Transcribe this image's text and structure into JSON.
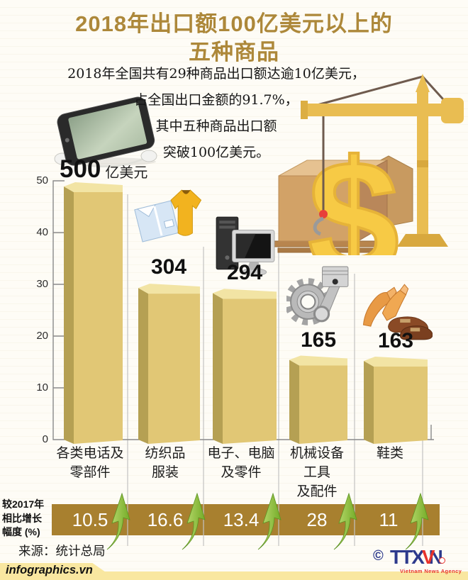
{
  "title": {
    "line1": "2018年出口额100亿美元以上的",
    "line2": "五种商品"
  },
  "intro": {
    "lines": [
      "2018年全国共有29种商品出口额达逾10亿美元，",
      "占全国出口金额的91.7%，",
      "其中五种商品出口额",
      "突破100亿美元。"
    ]
  },
  "chart_data": {
    "type": "bar",
    "title": "2018年出口额100亿美元以上的五种商品",
    "unit_label": "亿美元",
    "categories": [
      "各类电话及零部件",
      "纺织品服装",
      "电子、电脑及零件",
      "机械设备工具及配件",
      "鞋类"
    ],
    "values": [
      500,
      304,
      294,
      165,
      163
    ],
    "value_labels": [
      "500",
      "304",
      "294",
      "165",
      "163"
    ],
    "y_ticks": [
      "0",
      "10",
      "20",
      "30",
      "40",
      "50"
    ],
    "ylim": [
      0,
      500
    ],
    "y_axis_note": "axis ticks 0-50 represent tens of 亿美元",
    "grid": "ticks only, column separators",
    "legend_position": "none",
    "growth_series": {
      "name": "较2017年相比增长幅度(%)",
      "values": [
        10.5,
        16.6,
        13.4,
        28,
        11
      ]
    }
  },
  "category_lines": [
    [
      "各类电话及",
      "零部件"
    ],
    [
      "纺织品",
      "服装"
    ],
    [
      "电子、电脑",
      "及零件"
    ],
    [
      "机械设备",
      "工具",
      "及配件"
    ],
    [
      "鞋类"
    ]
  ],
  "growth": {
    "label_lines": [
      "较2017年",
      "相比增长",
      "幅度 (%)"
    ],
    "values": [
      "10.5",
      "16.6",
      "13.4",
      "28",
      "11"
    ]
  },
  "footer": {
    "source": "来源：统计总局",
    "website": "infographics.vn",
    "copyright_symbol": "©",
    "logo_letters": [
      "T",
      "T",
      "X",
      "V",
      "N"
    ],
    "logo_sub": "Vietnam News Agency"
  },
  "icons": {
    "phone": "smartphone-with-earbuds",
    "apparel": "folded-shirt-and-polo",
    "computer": "desktop-computer",
    "machinery": "gear-and-piston",
    "footwear": "heels-and-loafers",
    "scene": "crane-lifting-dollar-over-boxes"
  },
  "colors": {
    "title_gold": "#ad883a",
    "bar_front": "#e1c775",
    "bar_side": "#b5a053",
    "bar_top": "#f2e4a4",
    "band_brown": "#a8802f",
    "arrow_green": "#8cc63e",
    "footer_yellow": "#f9e7a0",
    "logo_blue": "#2d3a8c",
    "logo_red": "#e8332b"
  }
}
